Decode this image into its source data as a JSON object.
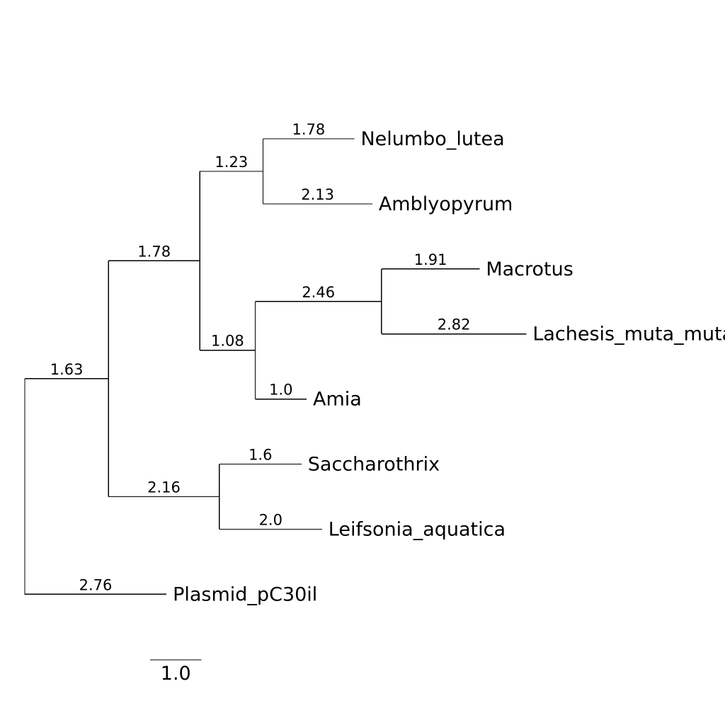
{
  "tree": {
    "root": {
      "children": [
        {
          "length": 1.63,
          "label": "1.63",
          "children": [
            {
              "length": 1.78,
              "label": "1.78",
              "children": [
                {
                  "length": 1.23,
                  "label": "1.23",
                  "children": [
                    {
                      "length": 1.78,
                      "label": "1.78",
                      "name": "Nelumbo_lutea"
                    },
                    {
                      "length": 2.13,
                      "label": "2.13",
                      "name": "Amblyopyrum"
                    }
                  ]
                },
                {
                  "length": 1.08,
                  "label": "1.08",
                  "children": [
                    {
                      "length": 2.46,
                      "label": "2.46",
                      "children": [
                        {
                          "length": 1.91,
                          "label": "1.91",
                          "name": "Macrotus"
                        },
                        {
                          "length": 2.82,
                          "label": "2.82",
                          "name": "Lachesis_muta_muta"
                        }
                      ]
                    },
                    {
                      "length": 1.0,
                      "label": "1.0",
                      "name": "Amia"
                    }
                  ]
                }
              ]
            },
            {
              "length": 2.16,
              "label": "2.16",
              "children": [
                {
                  "length": 1.6,
                  "label": "1.6",
                  "name": "Saccharothrix"
                },
                {
                  "length": 2.0,
                  "label": "2.0",
                  "name": "Leifsonia_aquatica"
                }
              ]
            }
          ]
        },
        {
          "length": 2.76,
          "label": "2.76",
          "name": "Plasmid_pC30il"
        }
      ]
    }
  },
  "scale_bar": {
    "length": 1.0,
    "label": "1.0"
  }
}
